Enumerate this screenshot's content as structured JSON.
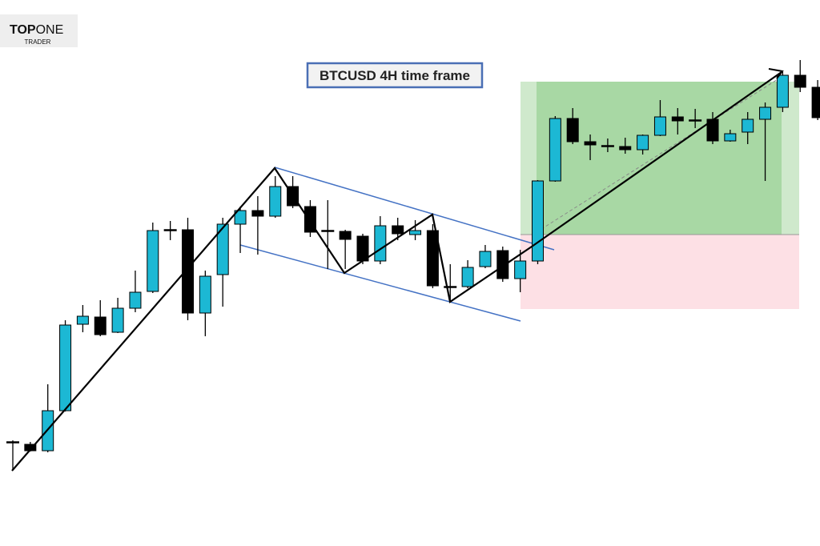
{
  "logo": {
    "top": "TOP",
    "one": "ONE",
    "sub": "TRADER"
  },
  "chart_data": {
    "type": "candlestick",
    "title": "BTCUSD 4H time frame",
    "up_color": "#1cb8d4",
    "down_color": "#000000",
    "ylim": [
      0,
      682
    ],
    "open": [
      130,
      127,
      119,
      169,
      277,
      286,
      267,
      297,
      318,
      395,
      395,
      291,
      339,
      402,
      419,
      412,
      449,
      424,
      394,
      393,
      387,
      356,
      400,
      389,
      394,
      324,
      324,
      349,
      369,
      334,
      356,
      456,
      534,
      505,
      500,
      499,
      495,
      513,
      536,
      532,
      533,
      506,
      517,
      533,
      548,
      588,
      573
    ],
    "high": [
      132,
      130,
      202,
      282,
      301,
      307,
      310,
      344,
      404,
      406,
      410,
      344,
      410,
      424,
      437,
      462,
      462,
      432,
      432,
      395,
      390,
      412,
      410,
      407,
      402,
      352,
      357,
      376,
      374,
      370,
      457,
      537,
      547,
      514,
      509,
      510,
      514,
      557,
      547,
      546,
      542,
      520,
      542,
      554,
      592,
      607,
      582
    ],
    "low": [
      95,
      118,
      117,
      168,
      267,
      262,
      266,
      292,
      316,
      382,
      282,
      262,
      299,
      366,
      364,
      410,
      422,
      386,
      346,
      346,
      352,
      352,
      382,
      382,
      322,
      304,
      322,
      347,
      330,
      317,
      352,
      455,
      502,
      482,
      492,
      490,
      489,
      512,
      514,
      522,
      502,
      505,
      502,
      456,
      542,
      567,
      532
    ],
    "close": [
      129,
      119,
      169,
      276,
      287,
      264,
      297,
      317,
      394,
      394,
      291,
      337,
      402,
      419,
      412,
      449,
      425,
      392,
      393,
      383,
      356,
      400,
      390,
      394,
      325,
      323,
      348,
      368,
      334,
      356,
      456,
      534,
      505,
      501,
      499,
      495,
      513,
      536,
      531,
      531,
      506,
      515,
      533,
      548,
      588,
      573,
      535
    ]
  }
}
